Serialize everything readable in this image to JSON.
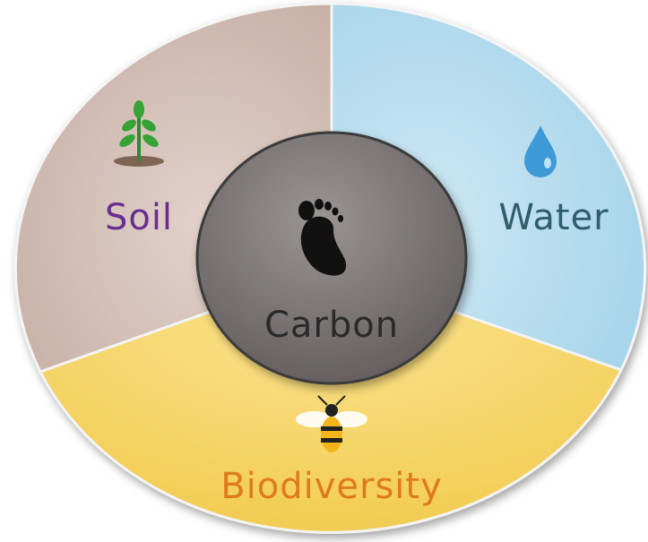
{
  "nodes": [
    {
      "label": "Soil"
    },
    {
      "label": "Water"
    },
    {
      "label": "Biodiversity"
    },
    {
      "label": "Carbon"
    }
  ]
}
